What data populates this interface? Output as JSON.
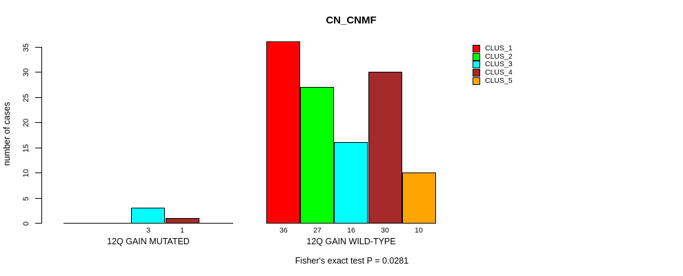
{
  "title": "CN_CNMF",
  "ylabel": "number of cases",
  "footer": "Fisher's exact test P = 0.0281",
  "colors": {
    "background": "#FFFFFF",
    "axis": "#000000",
    "text": "#000000"
  },
  "chart_data": {
    "type": "bar",
    "title": "CN_CNMF",
    "ylabel": "number of cases",
    "xlabel": "",
    "ylim": [
      0,
      35
    ],
    "yticks": [
      0,
      5,
      10,
      15,
      20,
      25,
      30,
      35
    ],
    "grid": false,
    "legend_position": "top-right",
    "categories": [
      "12Q GAIN MUTATED",
      "12Q GAIN WILD-TYPE"
    ],
    "series": [
      {
        "name": "CLUS_1",
        "color": "#FF0000",
        "values": [
          0,
          36
        ]
      },
      {
        "name": "CLUS_2",
        "color": "#00FF00",
        "values": [
          0,
          27
        ]
      },
      {
        "name": "CLUS_3",
        "color": "#00FFFF",
        "values": [
          3,
          16
        ]
      },
      {
        "name": "CLUS_4",
        "color": "#A52A2A",
        "values": [
          1,
          30
        ]
      },
      {
        "name": "CLUS_5",
        "color": "#FFA500",
        "values": [
          0,
          10
        ]
      }
    ],
    "bar_value_labels": [
      [
        "",
        "",
        "3",
        "1",
        ""
      ],
      [
        "36",
        "27",
        "16",
        "30",
        "10"
      ]
    ],
    "annotation": "Fisher's exact test P = 0.0281"
  }
}
